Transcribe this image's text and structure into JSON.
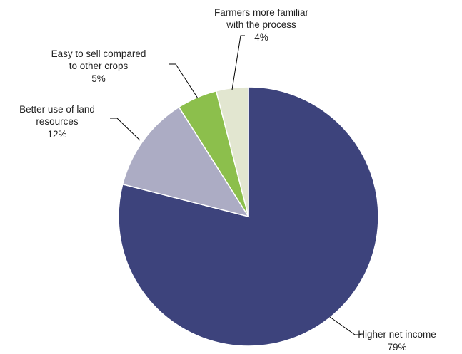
{
  "chart_data": {
    "type": "pie",
    "title": "",
    "unit": "%",
    "start": "12 o'clock",
    "direction": "clockwise",
    "slices": [
      {
        "name_lines": [
          "Higher net income"
        ],
        "value": 79,
        "label": "79%",
        "color": "#3d437c"
      },
      {
        "name_lines": [
          "Better use of land",
          "resources"
        ],
        "value": 12,
        "label": "12%",
        "color": "#acacc4"
      },
      {
        "name_lines": [
          "Easy to sell compared",
          "to other crops"
        ],
        "value": 5,
        "label": "5%",
        "color": "#8cbf4c"
      },
      {
        "name_lines": [
          "Farmers more familiar",
          "with the process"
        ],
        "value": 4,
        "label": "4%",
        "color": "#e2e6d0"
      }
    ],
    "leader_line_color": "#000000",
    "slice_border_color": "#ffffff",
    "legend": "none"
  }
}
